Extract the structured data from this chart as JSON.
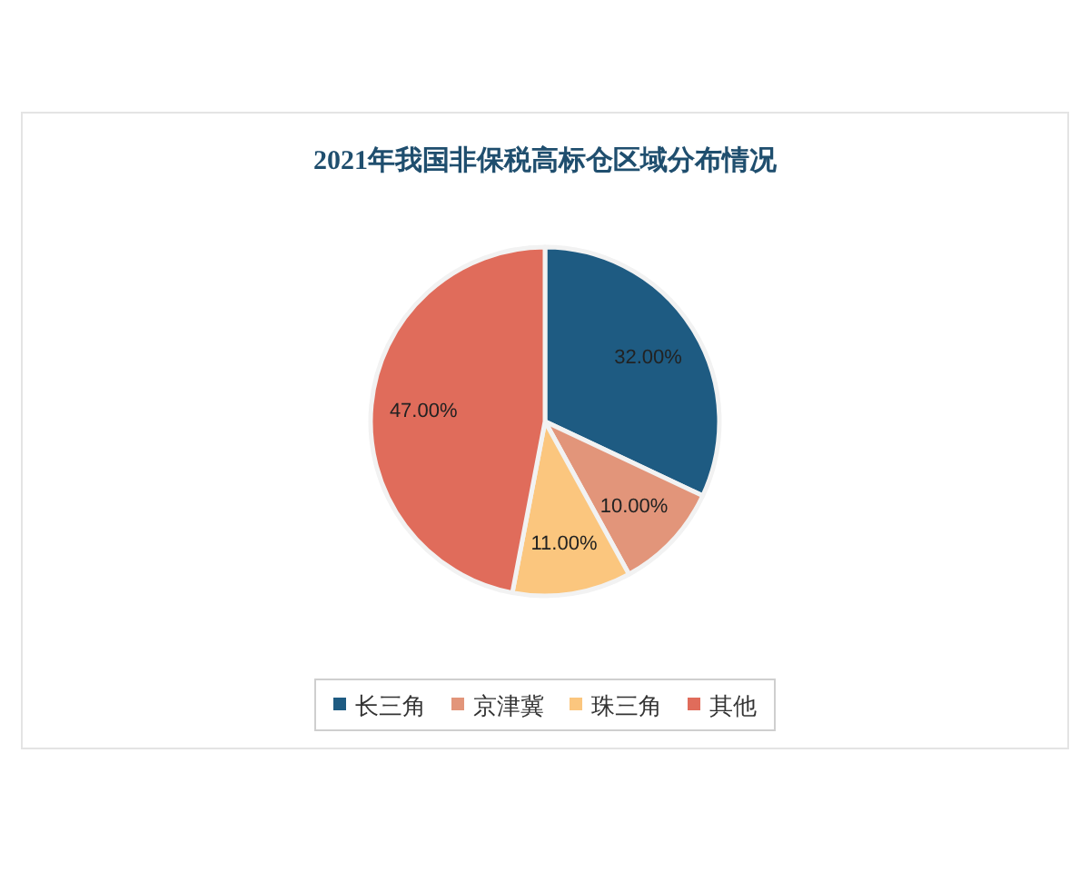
{
  "chart_data": {
    "type": "pie",
    "title": "2021年我国非保税高标仓区域分布情况",
    "categories": [
      "长三角",
      "京津冀",
      "珠三角",
      "其他"
    ],
    "values": [
      32,
      10,
      11,
      47
    ],
    "value_labels": [
      "32.00%",
      "10.00%",
      "11.00%",
      "47.00%"
    ],
    "colors": [
      "#1e5b82",
      "#e2957a",
      "#fbc67e",
      "#e06c5b"
    ],
    "legend": "bottom"
  }
}
